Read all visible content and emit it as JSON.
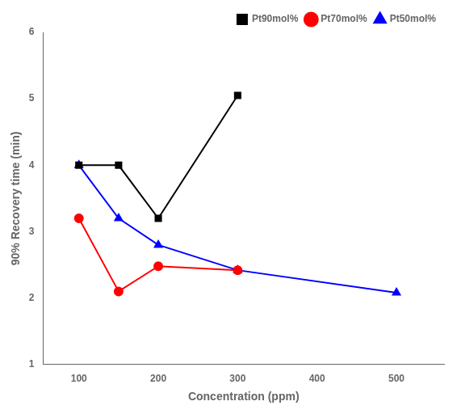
{
  "chart_data": {
    "type": "line",
    "xlabel": "Concentration (ppm)",
    "ylabel": "90% Recovery time (min)",
    "series": [
      {
        "name": "Pt90mol%",
        "color": "#000000",
        "marker": "square",
        "x": [
          100,
          150,
          200,
          300
        ],
        "values": [
          4.0,
          4.0,
          3.2,
          5.05
        ]
      },
      {
        "name": "Pt70mol%",
        "color": "#ff0000",
        "marker": "circle",
        "x": [
          100,
          150,
          200,
          300
        ],
        "values": [
          3.2,
          2.1,
          2.48,
          2.42
        ]
      },
      {
        "name": "Pt50mol%",
        "color": "#0000ff",
        "marker": "triangle",
        "x": [
          100,
          150,
          200,
          300,
          500
        ],
        "values": [
          4.0,
          3.2,
          2.8,
          2.42,
          2.08
        ]
      }
    ],
    "xlim": [
      55,
      560
    ],
    "ylim": [
      1.0,
      6.0
    ],
    "xticks": [
      100,
      200,
      300,
      400,
      500
    ],
    "yticks": [
      1,
      2,
      3,
      4,
      5,
      6
    ],
    "legend": "upper right",
    "grid": false
  }
}
